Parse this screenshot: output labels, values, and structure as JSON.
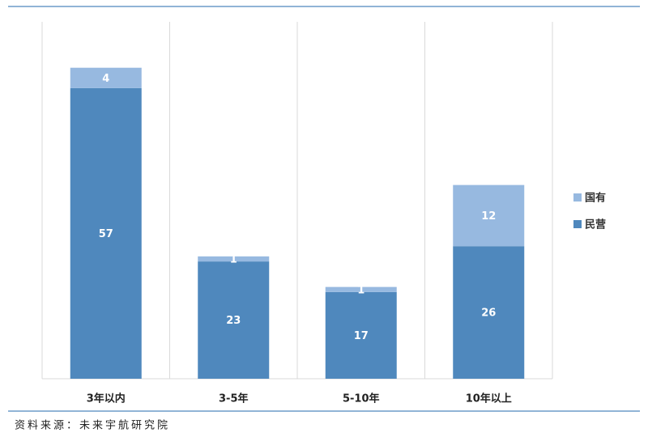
{
  "chart_data": {
    "type": "stacked_bar",
    "categories": [
      "3年以内",
      "3-5年",
      "5-10年",
      "10年以上"
    ],
    "series": [
      {
        "name": "民营",
        "color": "#4f88bd",
        "values": [
          57,
          23,
          17,
          26
        ]
      },
      {
        "name": "国有",
        "color": "#97b9e0",
        "values": [
          4,
          1,
          1,
          12
        ]
      }
    ],
    "ylim": [
      0,
      70
    ],
    "source": "资料来源：未来宇航研究院"
  }
}
